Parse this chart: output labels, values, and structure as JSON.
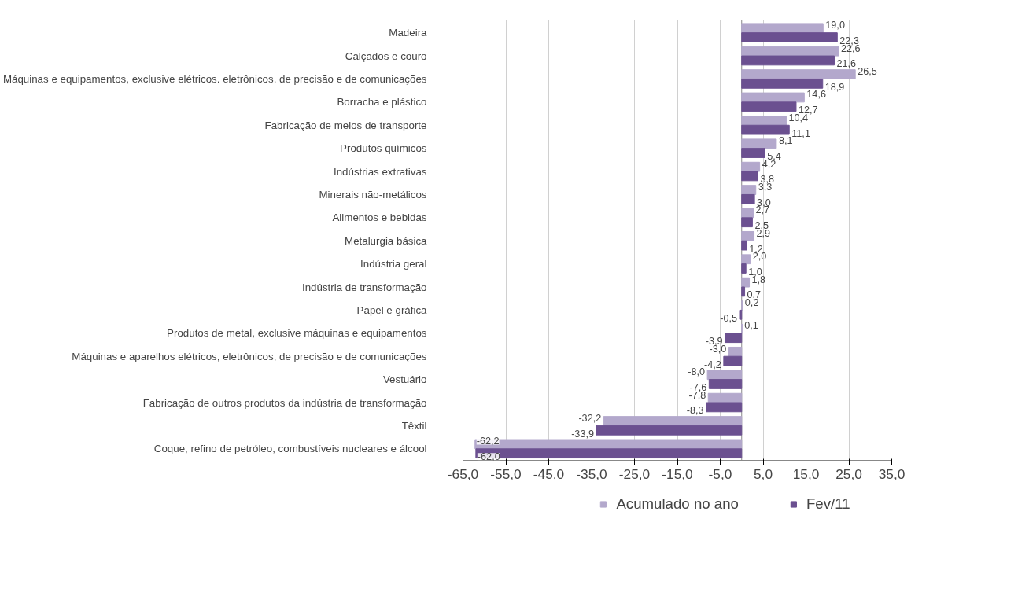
{
  "chart_data": {
    "type": "bar",
    "orientation": "horizontal",
    "categories": [
      "Madeira",
      "Calçados e couro",
      "Máquinas e equipamentos, exclusive elétricos. eletrônicos, de precisão e de comunicações",
      "Borracha e plástico",
      "Fabricação de meios de transporte",
      "Produtos químicos",
      "Indústrias extrativas",
      "Minerais não-metálicos",
      "Alimentos e bebidas",
      "Metalurgia básica",
      "Indústria geral",
      "Indústria de transformação",
      "Papel e gráfica",
      "Produtos de metal, exclusive máquinas e equipamentos",
      "Máquinas e aparelhos elétricos, eletrônicos, de precisão e de comunicações",
      "Vestuário",
      "Fabricação de outros produtos da indústria de transformação",
      "Têxtil",
      "Coque, refino de petróleo, combustíveis nucleares e álcool"
    ],
    "series": [
      {
        "name": "Acumulado no ano",
        "color": "#b3a8cc",
        "values": [
          19.0,
          22.6,
          26.5,
          14.6,
          10.4,
          8.1,
          4.2,
          3.3,
          2.7,
          2.9,
          2.0,
          1.8,
          0.2,
          0.1,
          -3.0,
          -8.0,
          -7.8,
          -32.2,
          -62.2
        ],
        "value_labels": [
          "19,0",
          "22,6",
          "26,5",
          "14,6",
          "10,4",
          "8,1",
          "4,2",
          "3,3",
          "2,7",
          "2,9",
          "2,0",
          "1,8",
          "0,2",
          "0,1",
          "-3,0",
          "-8,0",
          "-7,8",
          "-32,2",
          "-62,2"
        ]
      },
      {
        "name": "Fev/11",
        "color": "#6b5090",
        "values": [
          22.3,
          21.6,
          18.9,
          12.7,
          11.1,
          5.4,
          3.8,
          3.0,
          2.5,
          1.2,
          1.0,
          0.7,
          -0.5,
          -3.9,
          -4.2,
          -7.6,
          -8.3,
          -33.9,
          -62.0
        ],
        "value_labels": [
          "22,3",
          "21,6",
          "18,9",
          "12,7",
          "11,1",
          "5,4",
          "3,8",
          "3,0",
          "2,5",
          "1,2",
          "1,0",
          "0,7",
          "-0,5",
          "-3,9",
          "-4,2",
          "-7,6",
          "-8,3",
          "-33,9",
          "-62,0"
        ]
      }
    ],
    "xlim": [
      -65,
      35
    ],
    "xticks": [
      {
        "value": -65,
        "label": "-65,0"
      },
      {
        "value": -55,
        "label": "-55,0"
      },
      {
        "value": -45,
        "label": "-45,0"
      },
      {
        "value": -35,
        "label": "-35,0"
      },
      {
        "value": -25,
        "label": "-25,0"
      },
      {
        "value": -15,
        "label": "-15,0"
      },
      {
        "value": -5,
        "label": "-5,0"
      },
      {
        "value": 5,
        "label": "5,0"
      },
      {
        "value": 15,
        "label": "15,0"
      },
      {
        "value": 25,
        "label": "25,0"
      },
      {
        "value": 35,
        "label": "35,0"
      }
    ],
    "grid": "x",
    "legend": "bottom"
  }
}
